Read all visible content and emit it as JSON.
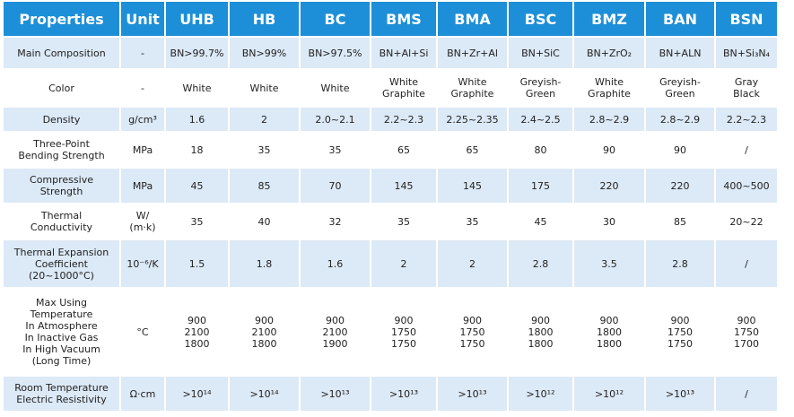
{
  "table": {
    "header": [
      "Properties",
      "Unit",
      "UHB",
      "HB",
      "BC",
      "BMS",
      "BMA",
      "BSC",
      "BMZ",
      "BAN",
      "BSN"
    ],
    "rows": [
      [
        "Main Composition",
        "-",
        "BN>99.7%",
        "BN>99%",
        "BN>97.5%",
        "BN+Al+Si",
        "BN+Zr+Al",
        "BN+SiC",
        "BN+ZrO₂",
        "BN+ALN",
        "BN+Si₃N₄"
      ],
      [
        "Color",
        "-",
        "White",
        "White",
        "White",
        "White\nGraphite",
        "White\nGraphite",
        "Greyish-\nGreen",
        "White\nGraphite",
        "Greyish-\nGreen",
        "Gray\nBlack"
      ],
      [
        "Density",
        "g/cm³",
        "1.6",
        "2",
        "2.0~2.1",
        "2.2~2.3",
        "2.25~2.35",
        "2.4~2.5",
        "2.8~2.9",
        "2.8~2.9",
        "2.2~2.3"
      ],
      [
        "Three-Point\nBending Strength",
        "MPa",
        "18",
        "35",
        "35",
        "65",
        "65",
        "80",
        "90",
        "90",
        "/"
      ],
      [
        "Compressive\nStrength",
        "MPa",
        "45",
        "85",
        "70",
        "145",
        "145",
        "175",
        "220",
        "220",
        "400~500"
      ],
      [
        "Thermal\nConductivity",
        "W/\n(m·k)",
        "35",
        "40",
        "32",
        "35",
        "35",
        "45",
        "30",
        "85",
        "20~22"
      ],
      [
        "Thermal Expansion\nCoefficient\n(20~1000°C)",
        "10⁻⁶/K",
        "1.5",
        "1.8",
        "1.6",
        "2",
        "2",
        "2.8",
        "3.5",
        "2.8",
        "/"
      ],
      [
        "Max Using\nTemperature\nIn Atmosphere\nIn Inactive Gas\nIn High Vacuum\n(Long Time)",
        "°C",
        "900\n2100\n1800",
        "900\n2100\n1800",
        "900\n2100\n1900",
        "900\n1750\n1750",
        "900\n1750\n1750",
        "900\n1800\n1800",
        "900\n1800\n1800",
        "900\n1750\n1750",
        "900\n1750\n1700"
      ],
      [
        "Room Temperature\nElectric Resistivity",
        "Ω·cm",
        ">10¹⁴",
        ">10¹⁴",
        ">10¹³",
        ">10¹³",
        ">10¹³",
        ">10¹²",
        ">10¹²",
        ">10¹³",
        "/"
      ]
    ]
  }
}
